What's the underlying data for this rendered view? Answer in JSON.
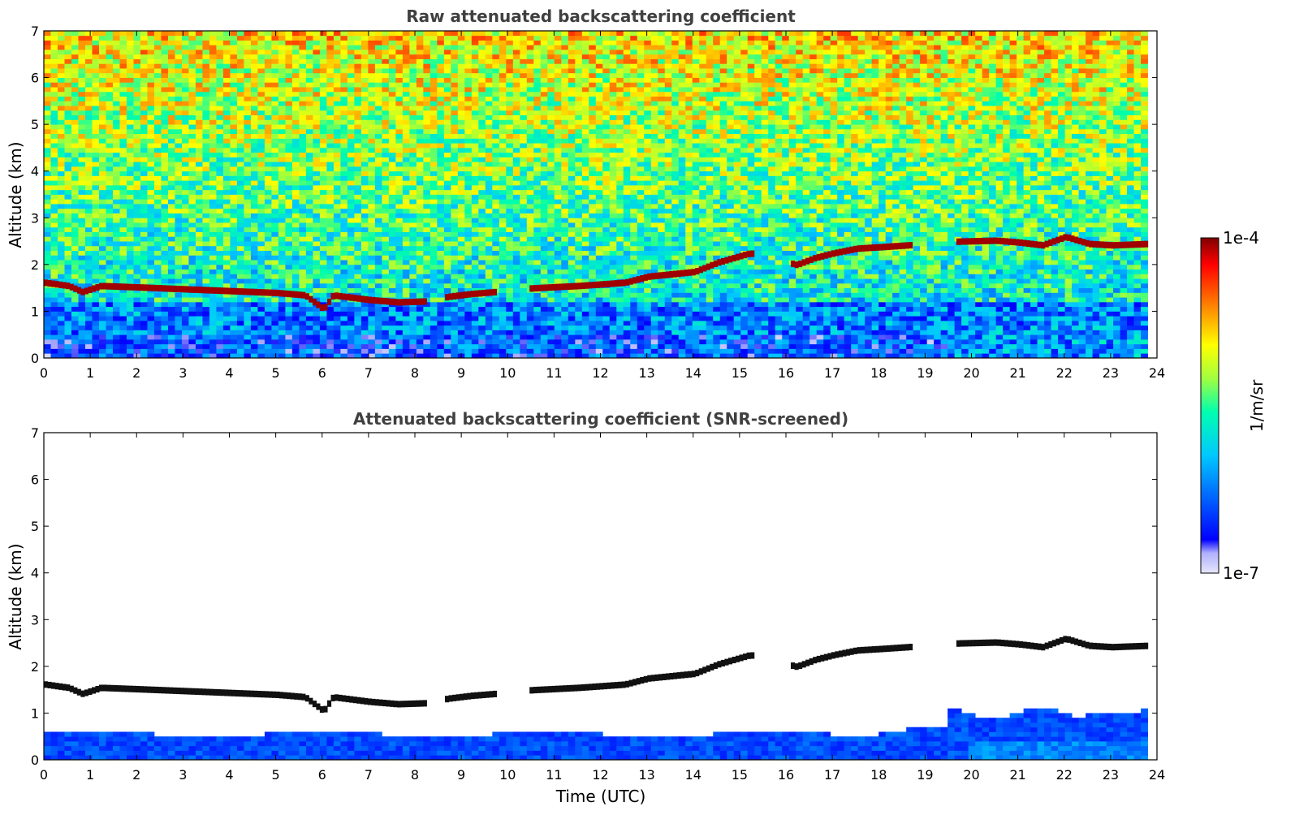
{
  "chart_data": [
    {
      "type": "heatmap",
      "title": "Raw attenuated backscattering coefficient",
      "xlabel": "",
      "ylabel": "Altitude (km)",
      "xlim": [
        0,
        24
      ],
      "ylim": [
        0,
        7
      ],
      "x_ticks": [
        "0",
        "1",
        "2",
        "3",
        "4",
        "5",
        "6",
        "7",
        "8",
        "9",
        "10",
        "11",
        "12",
        "13",
        "14",
        "15",
        "16",
        "17",
        "18",
        "19",
        "20",
        "21",
        "22",
        "23",
        "24"
      ],
      "y_ticks": [
        "0",
        "1",
        "2",
        "3",
        "4",
        "5",
        "6",
        "7"
      ],
      "grid": false,
      "noise_level": "high",
      "data_end_time": 23.8,
      "cloud_layer": {
        "description_points": [
          [
            0.0,
            1.62
          ],
          [
            0.5,
            1.55
          ],
          [
            0.8,
            1.42
          ],
          [
            1.2,
            1.55
          ],
          [
            2.0,
            1.52
          ],
          [
            3.0,
            1.48
          ],
          [
            4.0,
            1.44
          ],
          [
            5.0,
            1.4
          ],
          [
            5.6,
            1.35
          ],
          [
            6.0,
            1.05
          ],
          [
            6.2,
            1.35
          ],
          [
            7.0,
            1.25
          ],
          [
            7.6,
            1.2
          ],
          [
            8.2,
            1.22
          ],
          [
            8.7,
            1.32
          ],
          [
            9.2,
            1.38
          ],
          [
            9.7,
            1.42
          ],
          [
            10.5,
            1.5
          ],
          [
            11.5,
            1.55
          ],
          [
            12.5,
            1.62
          ],
          [
            13.0,
            1.75
          ],
          [
            13.5,
            1.8
          ],
          [
            14.0,
            1.85
          ],
          [
            14.5,
            2.05
          ],
          [
            15.2,
            2.25
          ],
          [
            16.2,
            2.0
          ],
          [
            16.6,
            2.15
          ],
          [
            17.0,
            2.25
          ],
          [
            17.5,
            2.35
          ],
          [
            18.0,
            2.38
          ],
          [
            18.6,
            2.42
          ],
          [
            19.7,
            2.5
          ],
          [
            20.5,
            2.52
          ],
          [
            21.0,
            2.48
          ],
          [
            21.5,
            2.42
          ],
          [
            22.0,
            2.6
          ],
          [
            22.5,
            2.45
          ],
          [
            23.0,
            2.42
          ],
          [
            23.8,
            2.45
          ]
        ],
        "gaps": [
          [
            8.25,
            8.6
          ],
          [
            9.75,
            10.4
          ],
          [
            15.3,
            16.1
          ],
          [
            18.7,
            19.6
          ]
        ]
      }
    },
    {
      "type": "heatmap",
      "title": "Attenuated backscattering coefficient (SNR-screened)",
      "xlabel": "Time (UTC)",
      "ylabel": "Altitude (km)",
      "xlim": [
        0,
        24
      ],
      "ylim": [
        0,
        7
      ],
      "x_ticks": [
        "0",
        "1",
        "2",
        "3",
        "4",
        "5",
        "6",
        "7",
        "8",
        "9",
        "10",
        "11",
        "12",
        "13",
        "14",
        "15",
        "16",
        "17",
        "18",
        "19",
        "20",
        "21",
        "22",
        "23",
        "24"
      ],
      "y_ticks": [
        "0",
        "1",
        "2",
        "3",
        "4",
        "5",
        "6",
        "7"
      ],
      "grid": false,
      "noise_level": "screened",
      "data_end_time": 23.8
    }
  ],
  "colorbar": {
    "label": "1/m/sr",
    "max_label": "1e-4",
    "min_label": "1e-7",
    "scale": "log",
    "colormap": "jet",
    "colors": [
      "#e6e6fa",
      "#0000ff",
      "#00ffff",
      "#00ff00",
      "#ffff00",
      "#ff8000",
      "#ff0000",
      "#800000"
    ]
  }
}
